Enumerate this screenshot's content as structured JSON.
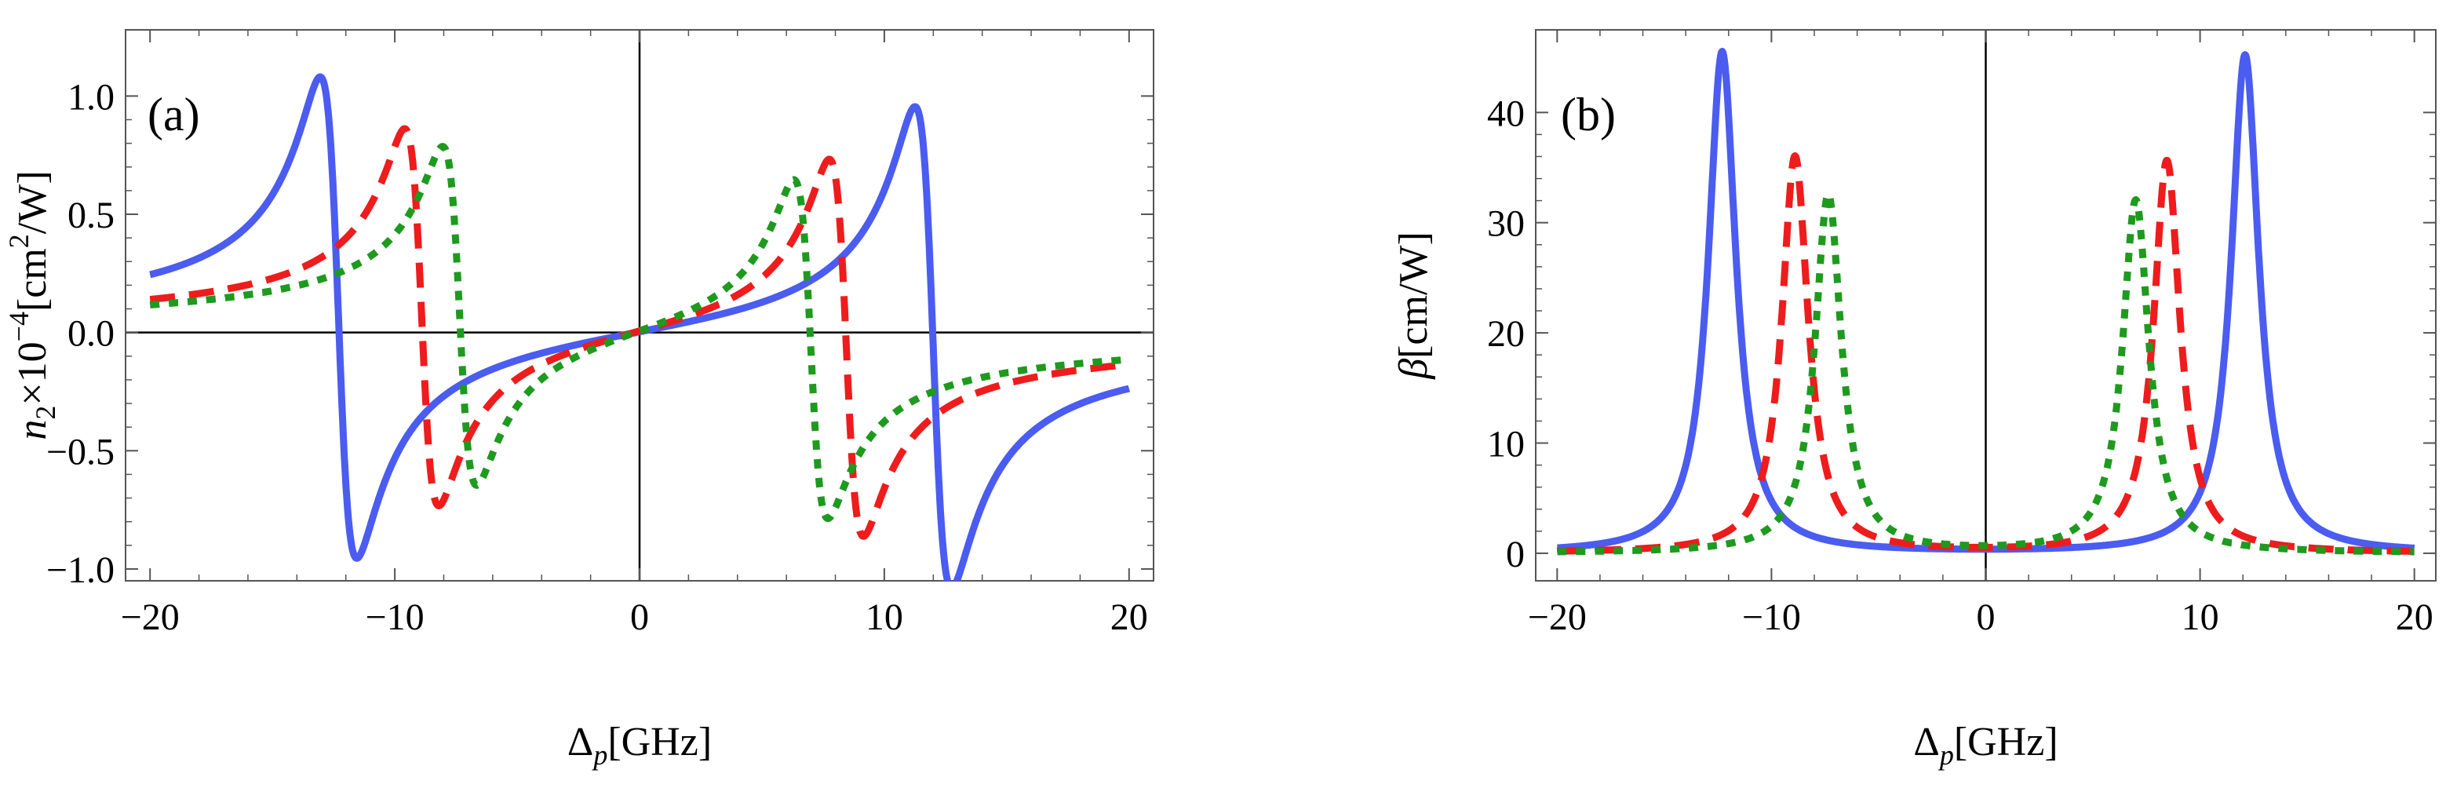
{
  "chart_data": [
    {
      "type": "line",
      "panel_label": "(a)",
      "ylabel": {
        "base": "n",
        "sub": "2",
        "times": "×10",
        "exp": "−4",
        "unit_pre": "[cm",
        "unit_exp": "2",
        "unit_post": "/W]"
      },
      "xlabel": {
        "base": "Δ",
        "sub": "p",
        "unit": "[GHz]"
      },
      "xlim": [
        -21,
        21
      ],
      "ylim": [
        -1.05,
        1.28
      ],
      "xticks": [
        -20,
        -10,
        0,
        10,
        20
      ],
      "xtick_labels": [
        "−20",
        "−10",
        "0",
        "10",
        "20"
      ],
      "yticks": [
        -1.0,
        -0.5,
        0.0,
        0.5,
        1.0
      ],
      "ytick_labels": [
        "−1.0",
        "−0.5",
        "0.0",
        "0.5",
        "1.0"
      ],
      "series": [
        {
          "name": "solid",
          "color": "#4b5cf0",
          "dash": "solid",
          "features": [
            {
              "x0": -12.3,
              "w": 0.75,
              "A": -1.02
            },
            {
              "x0": 12.0,
              "w": 0.75,
              "A": -1.02
            }
          ]
        },
        {
          "name": "dashed",
          "color": "#ee1c1c",
          "dash": "dashed",
          "features": [
            {
              "x0": -8.9,
              "w": 0.7,
              "A": -0.8
            },
            {
              "x0": 8.45,
              "w": 0.7,
              "A": -0.8
            }
          ]
        },
        {
          "name": "dotted",
          "color": "#1e9a1e",
          "dash": "dotted",
          "features": [
            {
              "x0": -7.35,
              "w": 0.7,
              "A": -0.72
            },
            {
              "x0": 7.0,
              "w": 0.7,
              "A": -0.72
            }
          ]
        }
      ]
    },
    {
      "type": "line",
      "panel_label": "(b)",
      "ylabel": {
        "base": "β",
        "unit": "[cm/W]"
      },
      "xlabel": {
        "base": "Δ",
        "sub": "p",
        "unit": "[GHz]"
      },
      "xlim": [
        -21,
        21
      ],
      "ylim": [
        -2.5,
        47.5
      ],
      "xticks": [
        -20,
        -10,
        0,
        10,
        20
      ],
      "xtick_labels": [
        "−20",
        "−10",
        "0",
        "10",
        "20"
      ],
      "yticks": [
        0,
        10,
        20,
        30,
        40
      ],
      "ytick_labels": [
        "0",
        "10",
        "20",
        "30",
        "40"
      ],
      "series": [
        {
          "name": "solid",
          "color": "#4b5cf0",
          "dash": "solid",
          "peaks": [
            {
              "x0": -12.3,
              "w": 0.78,
              "h": 45.5
            },
            {
              "x0": 12.1,
              "w": 0.78,
              "h": 45.2
            }
          ]
        },
        {
          "name": "dashed",
          "color": "#ee1c1c",
          "dash": "dashed",
          "peaks": [
            {
              "x0": -8.9,
              "w": 0.75,
              "h": 36.0
            },
            {
              "x0": 8.45,
              "w": 0.75,
              "h": 35.6
            }
          ]
        },
        {
          "name": "dotted",
          "color": "#1e9a1e",
          "dash": "dotted",
          "peaks": [
            {
              "x0": -7.35,
              "w": 0.75,
              "h": 32.5
            },
            {
              "x0": 7.0,
              "w": 0.75,
              "h": 32.0
            }
          ]
        }
      ]
    }
  ]
}
